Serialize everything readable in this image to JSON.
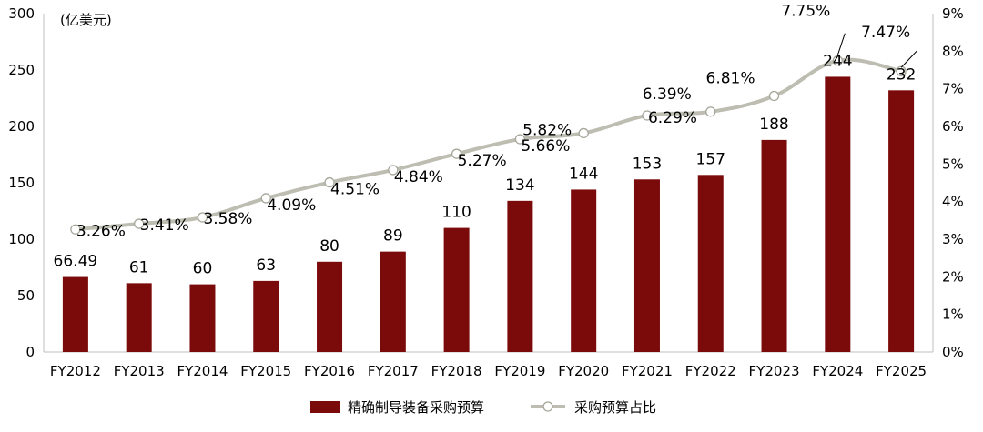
{
  "chart_data": {
    "type": "bar",
    "unit_label": "(亿美元)",
    "categories": [
      "FY2012",
      "FY2013",
      "FY2014",
      "FY2015",
      "FY2016",
      "FY2017",
      "FY2018",
      "FY2019",
      "FY2020",
      "FY2021",
      "FY2022",
      "FY2023",
      "FY2024",
      "FY2025"
    ],
    "series": [
      {
        "name": "精确制导装备采购预算",
        "type": "bar",
        "axis": "left",
        "color": "#7b0a0a",
        "values": [
          66.49,
          61,
          60,
          63,
          80,
          89,
          110,
          134,
          144,
          153,
          157,
          188,
          244,
          232
        ],
        "labels": [
          "66.49",
          "61",
          "60",
          "63",
          "80",
          "89",
          "110",
          "134",
          "144",
          "153",
          "157",
          "188",
          "244",
          "232"
        ]
      },
      {
        "name": "采购预算占比",
        "type": "line",
        "axis": "right",
        "color": "#bdbdb2",
        "values": [
          3.26,
          3.41,
          3.58,
          4.09,
          4.51,
          4.84,
          5.27,
          5.66,
          5.82,
          6.29,
          6.39,
          6.81,
          7.75,
          7.47
        ],
        "labels": [
          "3.26%",
          "3.41%",
          "3.58%",
          "4.09%",
          "4.51%",
          "4.84%",
          "5.27%",
          "5.66%",
          "5.82%",
          "6.29%",
          "6.39%",
          "6.81%",
          "7.75%",
          "7.47%"
        ]
      }
    ],
    "y_left": {
      "min": 0,
      "max": 300,
      "ticks": [
        "0",
        "50",
        "100",
        "150",
        "200",
        "250",
        "300"
      ]
    },
    "y_right": {
      "min": 0,
      "max": 9,
      "ticks": [
        "0%",
        "1%",
        "2%",
        "3%",
        "4%",
        "5%",
        "6%",
        "7%",
        "8%",
        "9%"
      ]
    },
    "grid": false,
    "legend_position": "bottom-center"
  }
}
